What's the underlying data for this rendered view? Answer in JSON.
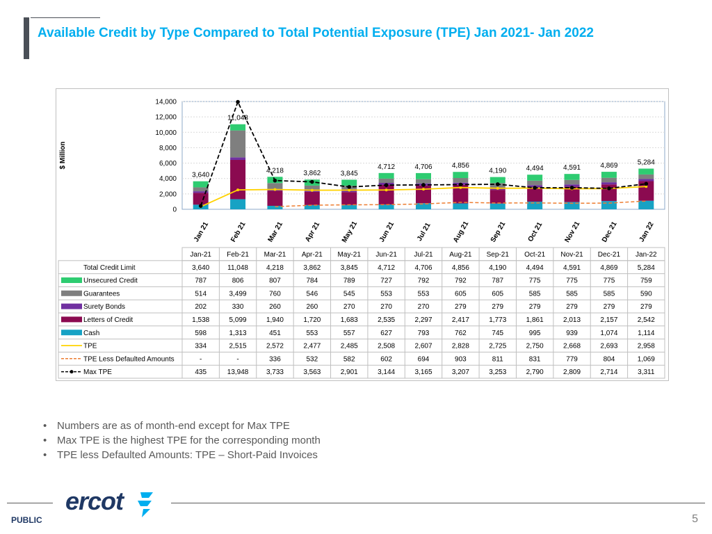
{
  "page": {
    "title": "Available Credit by Type Compared to Total Potential Exposure (TPE) Jan 2021- Jan 2022",
    "bullets": [
      "Numbers are as of month-end except for Max TPE",
      "Max TPE is the highest TPE for the corresponding month",
      "TPE less Defaulted Amounts: TPE – Short-Paid Invoices"
    ],
    "logo_text": "ercot",
    "footer_label": "PUBLIC",
    "page_number": "5"
  },
  "colors": {
    "title": "#00aeef",
    "unsecured": "#2ecc71",
    "guarantees": "#7f7f7f",
    "surety": "#7030a0",
    "loc": "#8b0a50",
    "cash": "#17a2c4",
    "tpe": "#ffd200",
    "tpe_less": "#ed7d31",
    "max_tpe": "#000000"
  },
  "chart_data": {
    "type": "bar",
    "stacked": true,
    "ylabel": "$ Million",
    "ylim": [
      0,
      14000
    ],
    "yticks": [
      0,
      2000,
      4000,
      6000,
      8000,
      10000,
      12000,
      14000
    ],
    "ytick_labels": [
      "0",
      "2,000",
      "4,000",
      "6,000",
      "8,000",
      "10,000",
      "12,000",
      "14,000"
    ],
    "categories": [
      "Jan 21",
      "Feb 21",
      "Mar 21",
      "Apr 21",
      "May 21",
      "Jun 21",
      "Jul 21",
      "Aug 21",
      "Sep 21",
      "Oct 21",
      "Nov 21",
      "Dec 21",
      "Jan 22"
    ],
    "table_headers": [
      "Jan-21",
      "Feb-21",
      "Mar-21",
      "Apr-21",
      "May-21",
      "Jun-21",
      "Jul-21",
      "Aug-21",
      "Sep-21",
      "Oct-21",
      "Nov-21",
      "Dec-21",
      "Jan-22"
    ],
    "total_label": "Total Credit Limit",
    "totals": [
      "3,640",
      "11,048",
      "4,218",
      "3,862",
      "3,845",
      "4,712",
      "4,706",
      "4,856",
      "4,190",
      "4,494",
      "4,591",
      "4,869",
      "5,284"
    ],
    "total_values": [
      3640,
      11048,
      4218,
      3862,
      3845,
      4712,
      4706,
      4856,
      4190,
      4494,
      4591,
      4869,
      5284
    ],
    "stack_series": [
      {
        "key": "cash",
        "name": "Cash",
        "values": [
          598,
          1313,
          451,
          553,
          557,
          627,
          793,
          762,
          745,
          995,
          939,
          1074,
          1114
        ],
        "labels": [
          "598",
          "1,313",
          "451",
          "553",
          "557",
          "627",
          "793",
          "762",
          "745",
          "995",
          "939",
          "1,074",
          "1,114"
        ]
      },
      {
        "key": "loc",
        "name": "Letters of Credit",
        "values": [
          1538,
          5099,
          1940,
          1720,
          1683,
          2535,
          2297,
          2417,
          1773,
          1861,
          2013,
          2157,
          2542
        ],
        "labels": [
          "1,538",
          "5,099",
          "1,940",
          "1,720",
          "1,683",
          "2,535",
          "2,297",
          "2,417",
          "1,773",
          "1,861",
          "2,013",
          "2,157",
          "2,542"
        ]
      },
      {
        "key": "surety",
        "name": "Surety Bonds",
        "values": [
          202,
          330,
          260,
          260,
          270,
          270,
          270,
          279,
          279,
          279,
          279,
          279,
          279
        ],
        "labels": [
          "202",
          "330",
          "260",
          "260",
          "270",
          "270",
          "270",
          "279",
          "279",
          "279",
          "279",
          "279",
          "279"
        ]
      },
      {
        "key": "guarantees",
        "name": "Guarantees",
        "values": [
          514,
          3499,
          760,
          546,
          545,
          553,
          553,
          605,
          605,
          585,
          585,
          585,
          590
        ],
        "labels": [
          "514",
          "3,499",
          "760",
          "546",
          "545",
          "553",
          "553",
          "605",
          "605",
          "585",
          "585",
          "585",
          "590"
        ]
      },
      {
        "key": "unsecured",
        "name": "Unsecured Credit",
        "values": [
          787,
          806,
          807,
          784,
          789,
          727,
          792,
          792,
          787,
          775,
          775,
          775,
          759
        ],
        "labels": [
          "787",
          "806",
          "807",
          "784",
          "789",
          "727",
          "792",
          "792",
          "787",
          "775",
          "775",
          "775",
          "759"
        ]
      }
    ],
    "line_series": [
      {
        "key": "tpe",
        "name": "TPE",
        "values": [
          334,
          2515,
          2572,
          2477,
          2485,
          2508,
          2607,
          2828,
          2725,
          2750,
          2668,
          2693,
          2958
        ],
        "labels": [
          "334",
          "2,515",
          "2,572",
          "2,477",
          "2,485",
          "2,508",
          "2,607",
          "2,828",
          "2,725",
          "2,750",
          "2,668",
          "2,693",
          "2,958"
        ]
      },
      {
        "key": "tpe_less",
        "name": "TPE Less Defaulted Amounts",
        "values": [
          null,
          null,
          336,
          532,
          582,
          602,
          694,
          903,
          811,
          831,
          779,
          804,
          1069
        ],
        "labels": [
          "-",
          "-",
          "336",
          "532",
          "582",
          "602",
          "694",
          "903",
          "811",
          "831",
          "779",
          "804",
          "1,069"
        ]
      },
      {
        "key": "max_tpe",
        "name": "Max TPE",
        "values": [
          435,
          13948,
          3733,
          3563,
          2901,
          3144,
          3165,
          3207,
          3253,
          2790,
          2809,
          2714,
          3311
        ],
        "labels": [
          "435",
          "13,948",
          "3,733",
          "3,563",
          "2,901",
          "3,144",
          "3,165",
          "3,207",
          "3,253",
          "2,790",
          "2,809",
          "2,714",
          "3,311"
        ]
      }
    ],
    "table_row_order": [
      "unsecured",
      "guarantees",
      "surety",
      "loc",
      "cash",
      "tpe",
      "tpe_less",
      "max_tpe"
    ]
  }
}
